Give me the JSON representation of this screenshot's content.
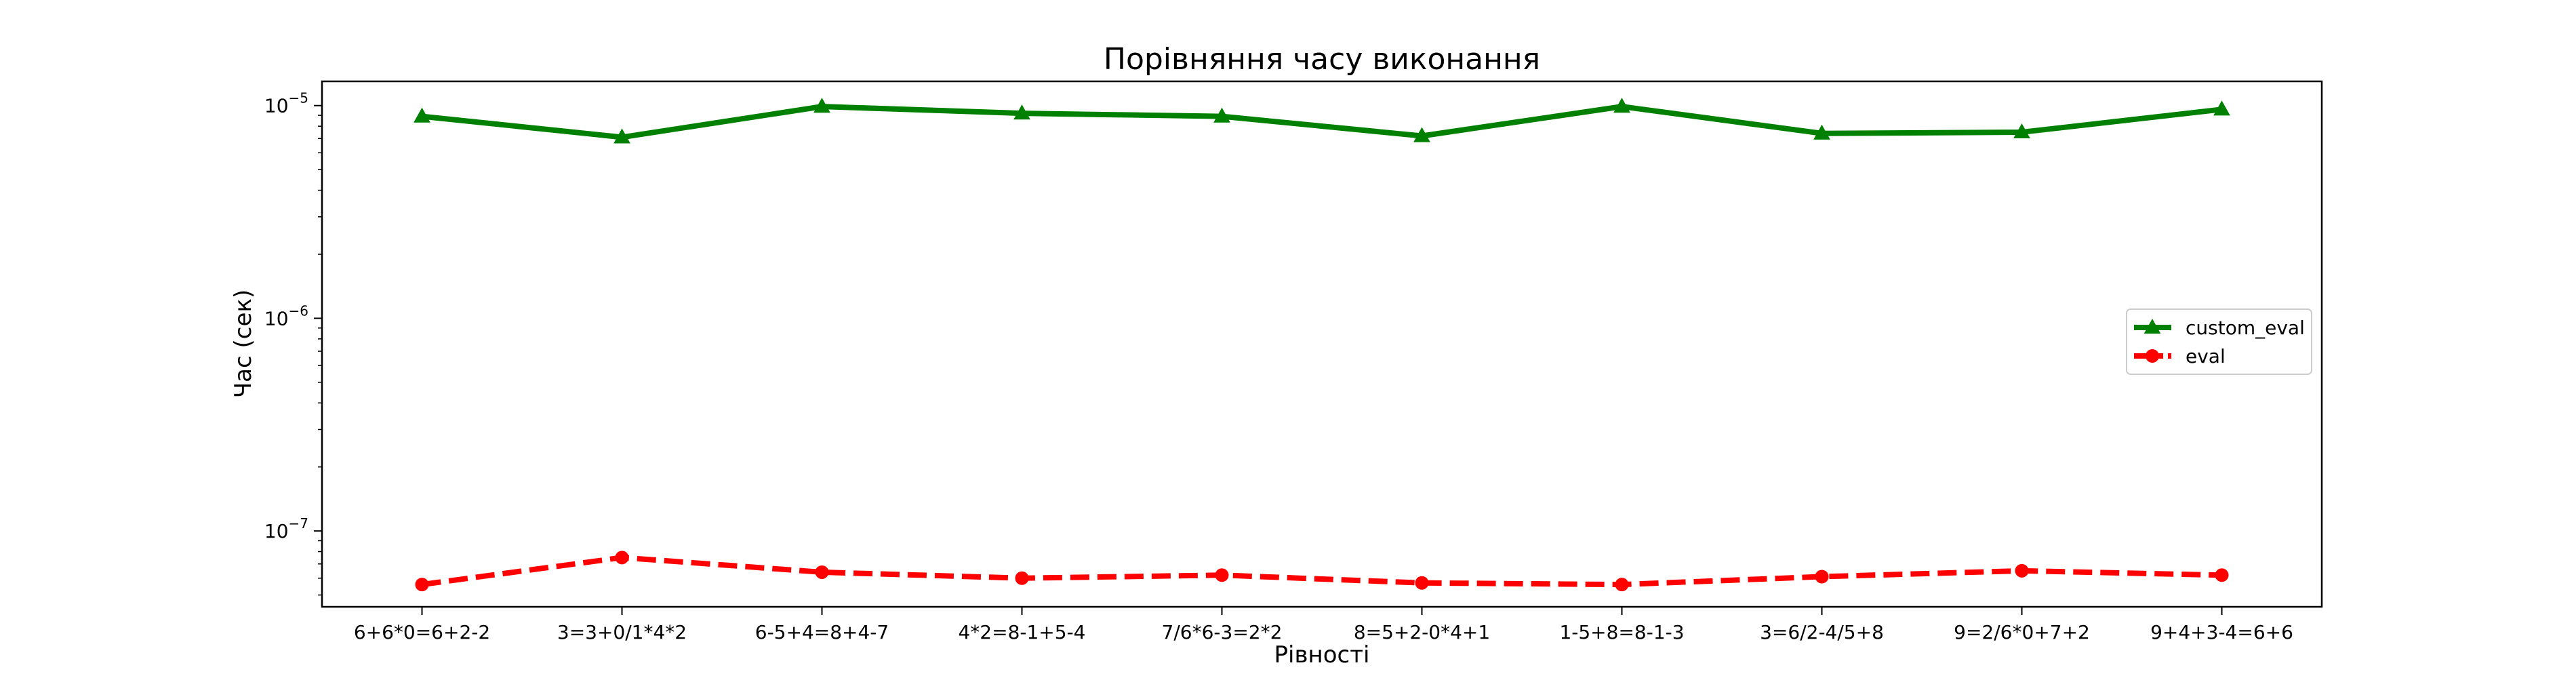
{
  "chart_data": {
    "type": "line",
    "title": "Порівняння часу виконання",
    "xlabel": "Рівності",
    "ylabel": "Час (сек)",
    "yscale": "log",
    "ylim": [
      4.4e-08,
      1.3e-05
    ],
    "grid": false,
    "legend_position": "center-right",
    "categories": [
      "6+6*0=6+2-2",
      "3=3+0/1*4*2",
      "6-5+4=8+4-7",
      "4*2=8-1+5-4",
      "7/6*6-3=2*2",
      "8=5+2-0*4+1",
      "1-5+8=8-1-3",
      "3=6/2-4/5+8",
      "9=2/6*0+7+2",
      "9+4+3-4=6+6"
    ],
    "y_ticks": [
      {
        "value": 1e-07,
        "base": "10",
        "exp": "−7"
      },
      {
        "value": 1e-06,
        "base": "10",
        "exp": "−6"
      },
      {
        "value": 1e-05,
        "base": "10",
        "exp": "−5"
      }
    ],
    "series": [
      {
        "name": "custom_eval",
        "color": "#008000",
        "linestyle": "solid",
        "marker": "triangle",
        "values": [
          8.9e-06,
          7.1e-06,
          9.9e-06,
          9.2e-06,
          8.9e-06,
          7.2e-06,
          9.9e-06,
          7.4e-06,
          7.5e-06,
          9.6e-06
        ]
      },
      {
        "name": "eval",
        "color": "#ff0000",
        "linestyle": "dashed",
        "marker": "circle",
        "values": [
          5.6e-08,
          7.5e-08,
          6.4e-08,
          6e-08,
          6.2e-08,
          5.7e-08,
          5.6e-08,
          6.1e-08,
          6.5e-08,
          6.2e-08
        ]
      }
    ]
  }
}
